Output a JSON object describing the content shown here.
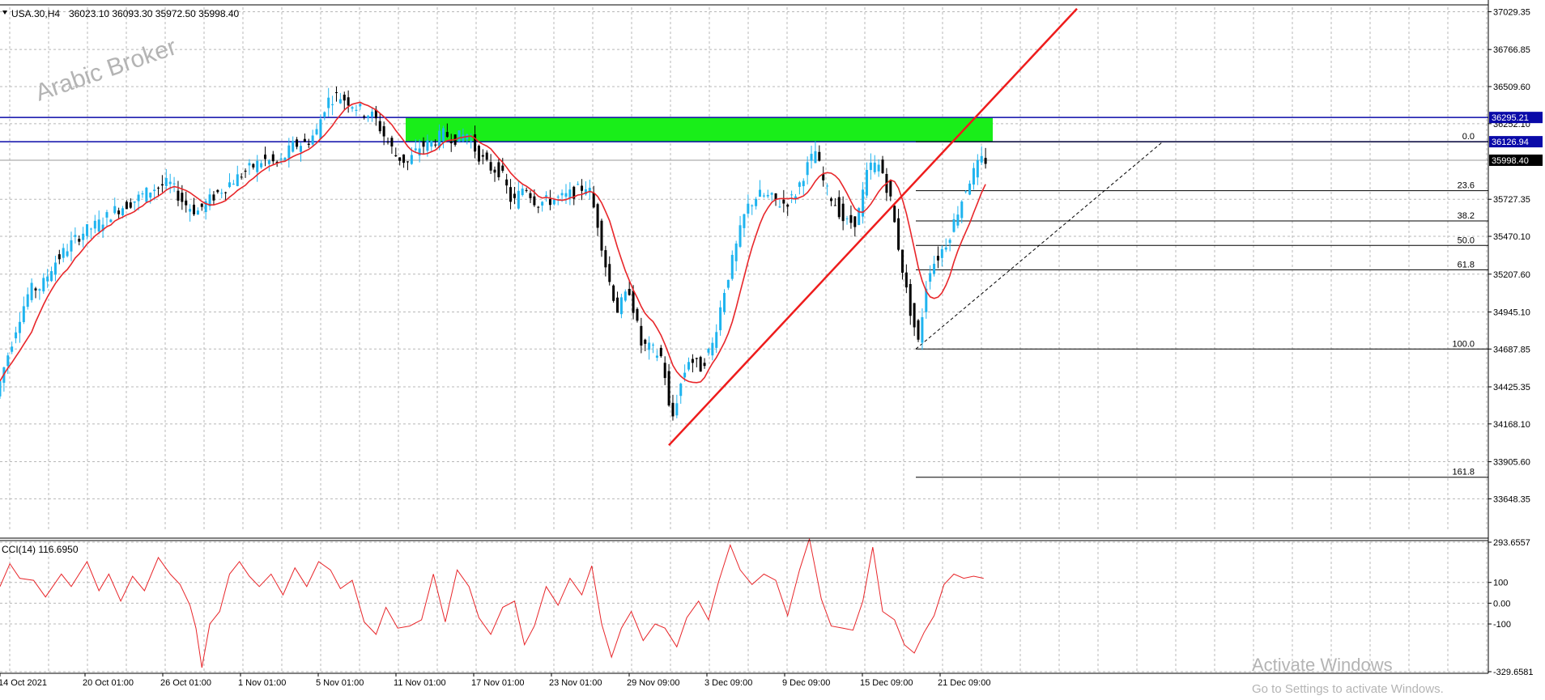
{
  "header": {
    "symbol": "USA.30,H4",
    "ohlc": "36023.10 36093.30 35972.50 35998.40"
  },
  "watermark": "Arabic Broker",
  "activate": {
    "line1": "Activate Windows",
    "line2": "Go to Settings to activate Windows."
  },
  "colors": {
    "bull": "#1fb4ef",
    "bear": "#000000",
    "ma": "#e8262a",
    "trend": "#ee1c1c",
    "zone": "#19ee19",
    "hline": "#0a0aa8",
    "grid": "#b8b8b8",
    "cci": "#e8262a"
  },
  "chart_data": [
    {
      "type": "candlestick",
      "symbol": "USA.30",
      "timeframe": "H4",
      "ylim": [
        33420,
        37060
      ],
      "y_ticks": [
        37029.35,
        36766.85,
        36509.6,
        36252.1,
        35727.35,
        35470.1,
        35207.6,
        34945.1,
        34687.85,
        34425.35,
        34168.1,
        33905.6,
        33648.35
      ],
      "x_labels": [
        "14 Oct 2021",
        "20 Oct 01:00",
        "26 Oct 01:00",
        "1 Nov 01:00",
        "5 Nov 01:00",
        "11 Nov 01:00",
        "17 Nov 01:00",
        "23 Nov 01:00",
        "29 Nov 09:00",
        "3 Dec 09:00",
        "9 Dec 09:00",
        "15 Dec 09:00",
        "21 Dec 09:00"
      ],
      "price_path": [
        [
          0,
          34360
        ],
        [
          8,
          34560
        ],
        [
          22,
          34880
        ],
        [
          34,
          35100
        ],
        [
          46,
          35120
        ],
        [
          58,
          35280
        ],
        [
          72,
          35390
        ],
        [
          86,
          35490
        ],
        [
          104,
          35560
        ],
        [
          120,
          35650
        ],
        [
          140,
          35720
        ],
        [
          158,
          35800
        ],
        [
          175,
          35840
        ],
        [
          190,
          35700
        ],
        [
          203,
          35640
        ],
        [
          212,
          35700
        ],
        [
          222,
          35760
        ],
        [
          236,
          35840
        ],
        [
          254,
          35930
        ],
        [
          270,
          36000
        ],
        [
          286,
          35970
        ],
        [
          300,
          36100
        ],
        [
          314,
          36120
        ],
        [
          324,
          36200
        ],
        [
          334,
          36410
        ],
        [
          345,
          36450
        ],
        [
          356,
          36410
        ],
        [
          368,
          36350
        ],
        [
          382,
          36300
        ],
        [
          392,
          36170
        ],
        [
          404,
          36030
        ],
        [
          416,
          35980
        ],
        [
          428,
          36090
        ],
        [
          440,
          36120
        ],
        [
          452,
          36180
        ],
        [
          464,
          36150
        ],
        [
          476,
          36180
        ],
        [
          486,
          36050
        ],
        [
          498,
          35950
        ],
        [
          510,
          35920
        ],
        [
          522,
          35690
        ],
        [
          534,
          35830
        ],
        [
          546,
          35700
        ],
        [
          560,
          35720
        ],
        [
          574,
          35740
        ],
        [
          588,
          35790
        ],
        [
          598,
          35830
        ],
        [
          608,
          35560
        ],
        [
          618,
          35200
        ],
        [
          628,
          34960
        ],
        [
          640,
          35100
        ],
        [
          652,
          34720
        ],
        [
          664,
          34680
        ],
        [
          674,
          34620
        ],
        [
          682,
          34160
        ],
        [
          690,
          34400
        ],
        [
          700,
          34620
        ],
        [
          712,
          34560
        ],
        [
          724,
          34720
        ],
        [
          736,
          35100
        ],
        [
          748,
          35400
        ],
        [
          758,
          35660
        ],
        [
          770,
          35760
        ],
        [
          782,
          35740
        ],
        [
          794,
          35690
        ],
        [
          806,
          35740
        ],
        [
          818,
          35930
        ],
        [
          828,
          36060
        ],
        [
          838,
          35800
        ],
        [
          848,
          35700
        ],
        [
          858,
          35560
        ],
        [
          870,
          35580
        ],
        [
          882,
          35960
        ],
        [
          894,
          35960
        ],
        [
          904,
          35720
        ],
        [
          912,
          35400
        ],
        [
          922,
          35010
        ],
        [
          932,
          34730
        ],
        [
          942,
          35230
        ],
        [
          952,
          35330
        ],
        [
          962,
          35450
        ],
        [
          972,
          35650
        ],
        [
          982,
          35840
        ],
        [
          992,
          35960
        ],
        [
          996,
          35998
        ]
      ],
      "candle_count": 250,
      "series": [
        {
          "type": "line",
          "name": "moving average",
          "smoothing": 8
        },
        {
          "type": "line",
          "trendline": true,
          "from": [
            "29 Nov 09:00",
            34020
          ],
          "to": [
            "beyond 21 Dec",
            37050
          ]
        }
      ],
      "horizontal_lines": [
        {
          "price": 36295.21,
          "label": "36295.21"
        },
        {
          "price": 36126.94,
          "label": "36126.94"
        }
      ],
      "current_price": 35998.4,
      "supply_zone": {
        "from": 36126.94,
        "to": 36295.21
      },
      "fibonacci": {
        "anchor_high": 36126.94,
        "anchor_low": 34687.85,
        "levels": [
          {
            "label": "0.0",
            "price": 36126.94
          },
          {
            "label": "23.6",
            "price": 35787
          },
          {
            "label": "38.2",
            "price": 35577
          },
          {
            "label": "50.0",
            "price": 35407
          },
          {
            "label": "61.8",
            "price": 35238
          },
          {
            "label": "100.0",
            "price": 34687.85
          },
          {
            "label": "161.8",
            "price": 33798
          }
        ]
      }
    },
    {
      "type": "line",
      "title": "CCI(14) 116.6950",
      "ylim": [
        -329.6581,
        293.6557
      ],
      "y_ticks": [
        293.6557,
        100,
        0.0,
        -100,
        -329.6581
      ],
      "y_tick_labels": [
        "293.6557",
        "100",
        "0.00",
        "-100",
        "-329.6581"
      ],
      "cci_path": [
        [
          0,
          80
        ],
        [
          10,
          190
        ],
        [
          20,
          120
        ],
        [
          34,
          110
        ],
        [
          46,
          30
        ],
        [
          62,
          140
        ],
        [
          72,
          80
        ],
        [
          88,
          200
        ],
        [
          100,
          60
        ],
        [
          110,
          140
        ],
        [
          122,
          10
        ],
        [
          134,
          130
        ],
        [
          146,
          60
        ],
        [
          160,
          220
        ],
        [
          172,
          140
        ],
        [
          182,
          90
        ],
        [
          192,
          -10
        ],
        [
          198,
          -120
        ],
        [
          204,
          -310
        ],
        [
          212,
          -100
        ],
        [
          222,
          -40
        ],
        [
          232,
          140
        ],
        [
          242,
          200
        ],
        [
          252,
          130
        ],
        [
          262,
          80
        ],
        [
          274,
          140
        ],
        [
          286,
          40
        ],
        [
          298,
          170
        ],
        [
          310,
          80
        ],
        [
          322,
          200
        ],
        [
          334,
          160
        ],
        [
          344,
          70
        ],
        [
          356,
          110
        ],
        [
          368,
          -90
        ],
        [
          380,
          -150
        ],
        [
          390,
          -20
        ],
        [
          402,
          -120
        ],
        [
          414,
          -110
        ],
        [
          426,
          -80
        ],
        [
          438,
          140
        ],
        [
          450,
          -90
        ],
        [
          462,
          160
        ],
        [
          474,
          80
        ],
        [
          484,
          -70
        ],
        [
          496,
          -150
        ],
        [
          508,
          -20
        ],
        [
          520,
          10
        ],
        [
          530,
          -200
        ],
        [
          540,
          -110
        ],
        [
          552,
          80
        ],
        [
          564,
          -10
        ],
        [
          576,
          120
        ],
        [
          588,
          40
        ],
        [
          598,
          180
        ],
        [
          608,
          -100
        ],
        [
          618,
          -260
        ],
        [
          628,
          -120
        ],
        [
          638,
          -40
        ],
        [
          650,
          -180
        ],
        [
          662,
          -100
        ],
        [
          672,
          -120
        ],
        [
          684,
          -210
        ],
        [
          694,
          -70
        ],
        [
          706,
          10
        ],
        [
          716,
          -80
        ],
        [
          726,
          100
        ],
        [
          738,
          280
        ],
        [
          748,
          160
        ],
        [
          760,
          90
        ],
        [
          772,
          140
        ],
        [
          784,
          110
        ],
        [
          796,
          -60
        ],
        [
          808,
          160
        ],
        [
          818,
          310
        ],
        [
          830,
          20
        ],
        [
          840,
          -110
        ],
        [
          852,
          -120
        ],
        [
          862,
          -130
        ],
        [
          872,
          10
        ],
        [
          882,
          270
        ],
        [
          892,
          -40
        ],
        [
          904,
          -80
        ],
        [
          914,
          -200
        ],
        [
          924,
          -240
        ],
        [
          934,
          -140
        ],
        [
          944,
          -60
        ],
        [
          954,
          90
        ],
        [
          964,
          140
        ],
        [
          974,
          120
        ],
        [
          984,
          130
        ],
        [
          994,
          120
        ]
      ],
      "series": [
        {
          "name": "CCI(14)",
          "values_from": "cci_path"
        }
      ]
    }
  ]
}
